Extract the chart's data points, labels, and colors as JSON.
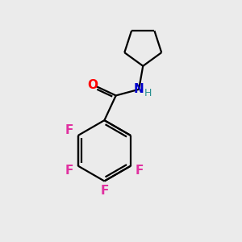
{
  "background_color": "#ebebeb",
  "bond_color": "#000000",
  "oxygen_color": "#ff0000",
  "nitrogen_color": "#0000cc",
  "fluorine_color": "#e030a0",
  "hydrogen_color": "#2a9090",
  "line_width": 1.6,
  "font_size_atom": 11,
  "font_size_h": 9,
  "figsize": [
    3.0,
    3.0
  ],
  "dpi": 100,
  "xlim": [
    0,
    10
  ],
  "ylim": [
    0,
    10
  ]
}
